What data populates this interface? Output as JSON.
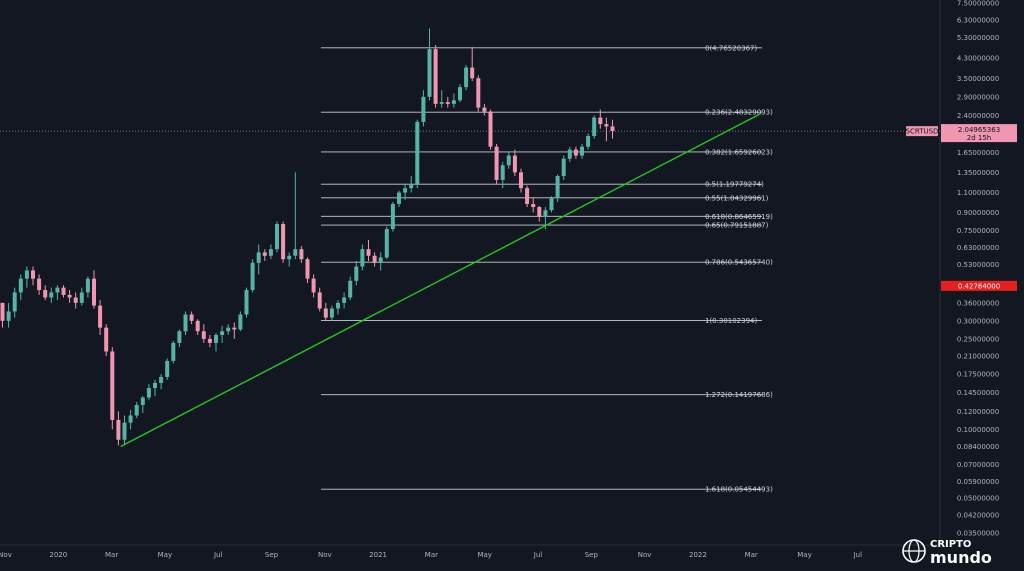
{
  "chart_data": {
    "type": "candlestick",
    "symbol_badge": "SCRTUSD",
    "current_price": "2.04965363",
    "countdown": "2d 15h",
    "marker_price": "0.42764000",
    "scale": "log",
    "x_labels": [
      "Nov",
      "2020",
      "Mar",
      "May",
      "Jul",
      "Sep",
      "Nov",
      "2021",
      "Mar",
      "May",
      "Jul",
      "Sep",
      "Nov",
      "2022",
      "Mar",
      "May",
      "Jul"
    ],
    "y_ticks": [
      "7.50000000",
      "6.30000000",
      "5.30000000",
      "4.30000000",
      "3.50000000",
      "2.90000000",
      "2.40000000",
      "1.95000000",
      "1.65000000",
      "1.35000000",
      "1.10000000",
      "0.90000000",
      "0.75000000",
      "0.63000000",
      "0.53000000",
      "0.36000000",
      "0.30000000",
      "0.25000000",
      "0.21000000",
      "0.17500000",
      "0.14500000",
      "0.12000000",
      "0.10000000",
      "0.08400000",
      "0.07000000",
      "0.05900000",
      "0.05000000",
      "0.04200000",
      "0.03500000"
    ],
    "fib_levels": [
      {
        "label": "0(4.76520367)",
        "value": 4.76520367
      },
      {
        "label": "0.236(2.48329093)",
        "value": 2.48329093
      },
      {
        "label": "0.382(1.65926023)",
        "value": 1.65926023
      },
      {
        "label": "0.5(1.19779274)",
        "value": 1.19779274
      },
      {
        "label": "0.55(1.04329961)",
        "value": 1.04329961
      },
      {
        "label": "0.618(0.86465919)",
        "value": 0.86465919
      },
      {
        "label": "0.65(0.79151887)",
        "value": 0.79151887
      },
      {
        "label": "0.786(0.54365740)",
        "value": 0.5436574
      },
      {
        "label": "1(0.30102394)",
        "value": 0.30102394
      },
      {
        "label": "1.272(0.14197686)",
        "value": 0.14197686
      },
      {
        "label": "1.618(0.05454493)",
        "value": 0.05454493
      }
    ],
    "candles": [
      [
        0.36,
        0.36,
        0.28,
        0.3
      ],
      [
        0.3,
        0.36,
        0.28,
        0.33
      ],
      [
        0.33,
        0.42,
        0.31,
        0.4
      ],
      [
        0.4,
        0.48,
        0.37,
        0.46
      ],
      [
        0.46,
        0.52,
        0.42,
        0.5
      ],
      [
        0.5,
        0.52,
        0.43,
        0.46
      ],
      [
        0.46,
        0.48,
        0.39,
        0.41
      ],
      [
        0.41,
        0.43,
        0.37,
        0.38
      ],
      [
        0.38,
        0.42,
        0.36,
        0.4
      ],
      [
        0.4,
        0.43,
        0.37,
        0.42
      ],
      [
        0.42,
        0.43,
        0.38,
        0.39
      ],
      [
        0.39,
        0.41,
        0.36,
        0.38
      ],
      [
        0.38,
        0.4,
        0.34,
        0.36
      ],
      [
        0.36,
        0.42,
        0.35,
        0.4
      ],
      [
        0.4,
        0.47,
        0.38,
        0.46
      ],
      [
        0.46,
        0.5,
        0.34,
        0.35
      ],
      [
        0.35,
        0.37,
        0.26,
        0.28
      ],
      [
        0.28,
        0.29,
        0.21,
        0.22
      ],
      [
        0.22,
        0.23,
        0.1,
        0.11
      ],
      [
        0.11,
        0.12,
        0.085,
        0.09
      ],
      [
        0.09,
        0.115,
        0.085,
        0.107
      ],
      [
        0.107,
        0.122,
        0.1,
        0.115
      ],
      [
        0.115,
        0.132,
        0.112,
        0.128
      ],
      [
        0.128,
        0.14,
        0.118,
        0.138
      ],
      [
        0.138,
        0.158,
        0.135,
        0.152
      ],
      [
        0.152,
        0.165,
        0.14,
        0.16
      ],
      [
        0.16,
        0.175,
        0.15,
        0.17
      ],
      [
        0.17,
        0.205,
        0.165,
        0.2
      ],
      [
        0.2,
        0.245,
        0.195,
        0.24
      ],
      [
        0.24,
        0.275,
        0.23,
        0.27
      ],
      [
        0.27,
        0.33,
        0.26,
        0.32
      ],
      [
        0.32,
        0.33,
        0.29,
        0.3
      ],
      [
        0.3,
        0.305,
        0.26,
        0.27
      ],
      [
        0.27,
        0.29,
        0.24,
        0.25
      ],
      [
        0.25,
        0.26,
        0.23,
        0.24
      ],
      [
        0.24,
        0.265,
        0.22,
        0.26
      ],
      [
        0.26,
        0.285,
        0.24,
        0.27
      ],
      [
        0.27,
        0.29,
        0.26,
        0.28
      ],
      [
        0.28,
        0.295,
        0.25,
        0.275
      ],
      [
        0.275,
        0.33,
        0.27,
        0.32
      ],
      [
        0.32,
        0.42,
        0.31,
        0.41
      ],
      [
        0.41,
        0.56,
        0.4,
        0.54
      ],
      [
        0.54,
        0.65,
        0.48,
        0.6
      ],
      [
        0.6,
        0.62,
        0.55,
        0.58
      ],
      [
        0.58,
        0.65,
        0.56,
        0.62
      ],
      [
        0.62,
        0.82,
        0.6,
        0.8
      ],
      [
        0.8,
        0.82,
        0.54,
        0.56
      ],
      [
        0.56,
        0.6,
        0.52,
        0.58
      ],
      [
        0.58,
        1.35,
        0.56,
        0.62
      ],
      [
        0.62,
        0.64,
        0.54,
        0.56
      ],
      [
        0.56,
        0.57,
        0.44,
        0.46
      ],
      [
        0.46,
        0.48,
        0.38,
        0.4
      ],
      [
        0.4,
        0.42,
        0.33,
        0.34
      ],
      [
        0.34,
        0.36,
        0.3,
        0.31
      ],
      [
        0.31,
        0.35,
        0.3,
        0.34
      ],
      [
        0.34,
        0.37,
        0.32,
        0.36
      ],
      [
        0.36,
        0.4,
        0.34,
        0.38
      ],
      [
        0.38,
        0.47,
        0.37,
        0.45
      ],
      [
        0.45,
        0.55,
        0.43,
        0.52
      ],
      [
        0.52,
        0.65,
        0.5,
        0.62
      ],
      [
        0.62,
        0.68,
        0.55,
        0.58
      ],
      [
        0.58,
        0.6,
        0.52,
        0.54
      ],
      [
        0.54,
        0.6,
        0.5,
        0.57
      ],
      [
        0.57,
        0.78,
        0.56,
        0.76
      ],
      [
        0.76,
        1.0,
        0.74,
        0.98
      ],
      [
        0.98,
        1.12,
        0.95,
        1.1
      ],
      [
        1.1,
        1.2,
        1.02,
        1.15
      ],
      [
        1.15,
        1.3,
        1.1,
        1.2
      ],
      [
        1.2,
        2.3,
        1.15,
        2.25
      ],
      [
        2.25,
        3.1,
        2.15,
        2.9
      ],
      [
        2.9,
        5.8,
        2.8,
        4.7
      ],
      [
        4.7,
        4.9,
        2.6,
        2.7
      ],
      [
        2.7,
        3.1,
        2.6,
        2.75
      ],
      [
        2.75,
        2.9,
        2.6,
        2.7
      ],
      [
        2.7,
        3.0,
        2.6,
        2.8
      ],
      [
        2.8,
        3.3,
        2.75,
        3.2
      ],
      [
        3.2,
        4.0,
        3.1,
        3.9
      ],
      [
        3.9,
        4.8,
        3.4,
        3.5
      ],
      [
        3.5,
        3.6,
        2.5,
        2.6
      ],
      [
        2.6,
        2.7,
        2.4,
        2.5
      ],
      [
        2.5,
        2.55,
        1.7,
        1.75
      ],
      [
        1.75,
        1.8,
        1.2,
        1.25
      ],
      [
        1.25,
        1.5,
        1.15,
        1.45
      ],
      [
        1.45,
        1.65,
        1.4,
        1.6
      ],
      [
        1.6,
        1.7,
        1.3,
        1.35
      ],
      [
        1.35,
        1.4,
        1.1,
        1.15
      ],
      [
        1.15,
        1.18,
        0.95,
        0.98
      ],
      [
        0.98,
        1.05,
        0.9,
        0.95
      ],
      [
        0.95,
        0.96,
        0.82,
        0.86
      ],
      [
        0.86,
        0.95,
        0.76,
        0.92
      ],
      [
        0.92,
        1.06,
        0.9,
        1.04
      ],
      [
        1.04,
        1.32,
        1.0,
        1.3
      ],
      [
        1.3,
        1.6,
        1.25,
        1.55
      ],
      [
        1.55,
        1.75,
        1.5,
        1.7
      ],
      [
        1.7,
        1.75,
        1.55,
        1.6
      ],
      [
        1.6,
        1.8,
        1.55,
        1.75
      ],
      [
        1.75,
        2.0,
        1.7,
        1.95
      ],
      [
        1.95,
        2.4,
        1.9,
        2.35
      ],
      [
        2.35,
        2.55,
        2.1,
        2.2
      ],
      [
        2.2,
        2.35,
        1.85,
        2.15
      ],
      [
        2.15,
        2.3,
        1.9,
        2.05
      ]
    ],
    "colors": {
      "up": "#56b4a6",
      "down": "#f096b0",
      "background": "#131722",
      "fib_line": "#c9cdd6",
      "trendline": "#22c71f",
      "price_line": "#9598a1",
      "marker": "#e61f1f",
      "badge": "#f096b0"
    },
    "trendline": {
      "start": {
        "x_label": "Mar",
        "value": 0.084
      },
      "end_value": 2.45
    },
    "grid": false
  },
  "watermark": {
    "line1": "CRIPTO",
    "line2": "mundo"
  }
}
